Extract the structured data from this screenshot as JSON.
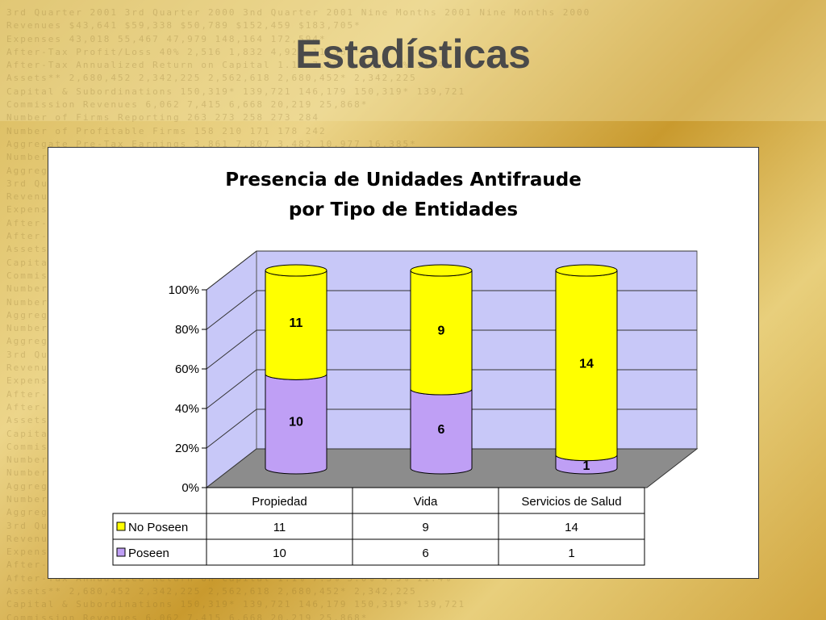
{
  "slide_title": "Estadísticas",
  "background_text": [
    "3rd Quarter 2001 3rd Quarter 2000 3nd Quarter 2001 Nine Months 2001 Nine Months 2000",
    "Revenues $43,641 $59,338 $50,789 $152,459 $183,705*",
    "Expenses 43,018 55,467 47,979 148,164 172,594*",
    "After-Tax Profit/Loss 40% 2,516 1,832 4,927 11,362*",
    "After-Tax Annualized Return on Capital 1.1% 7.3% 5.0% 4.5% 11.4%",
    "Assets** 2,680,452 2,342,225 2,562,618 2,680,452* 2,342,225",
    "Capital & Subordinations 150,319* 139,721 146,179 150,319* 139,721",
    "Commission Revenues 6,062 7,415 6,668 20,219 25,868*",
    "Number of Firms Reporting 263 273 258 273 284",
    "Number of Profitable Firms 158 210 171 178 242",
    "Aggregate Pre-Tax Earnings 3,861 7,807 3,482 10,977 16,385*",
    "Number of Unprofitable Firms 105 63 87 95 42",
    "Aggregate Pre-Tax Earnings (964) (1,133) (428) (861) (3,389) (689)"
  ],
  "colors": {
    "no_poseen": "#ffff00",
    "poseen": "#bf9ff5",
    "wall": "#c8c8f8",
    "floor": "#8c8c8c"
  },
  "chart_data": {
    "type": "bar",
    "subtype": "100% stacked 3D cylinder",
    "title": "Presencia de Unidades Antifraude por Tipo de Entidades",
    "title_lines": [
      "Presencia de Unidades Antifraude",
      "por Tipo de Entidades"
    ],
    "categories": [
      "Propiedad",
      "Vida",
      "Servicios de Salud"
    ],
    "series": [
      {
        "name": "Poseen",
        "values": [
          10,
          6,
          1
        ],
        "color": "#bf9ff5"
      },
      {
        "name": "No Poseen",
        "values": [
          11,
          9,
          14
        ],
        "color": "#ffff00"
      }
    ],
    "y_ticks": [
      "0%",
      "20%",
      "40%",
      "60%",
      "80%",
      "100%"
    ],
    "ylim": [
      0,
      100
    ],
    "grid": true,
    "legend": "data table",
    "data_table": {
      "rows": [
        {
          "name": "No Poseen",
          "values": [
            "11",
            "9",
            "14"
          ]
        },
        {
          "name": "Poseen",
          "values": [
            "10",
            "6",
            "1"
          ]
        }
      ]
    }
  }
}
